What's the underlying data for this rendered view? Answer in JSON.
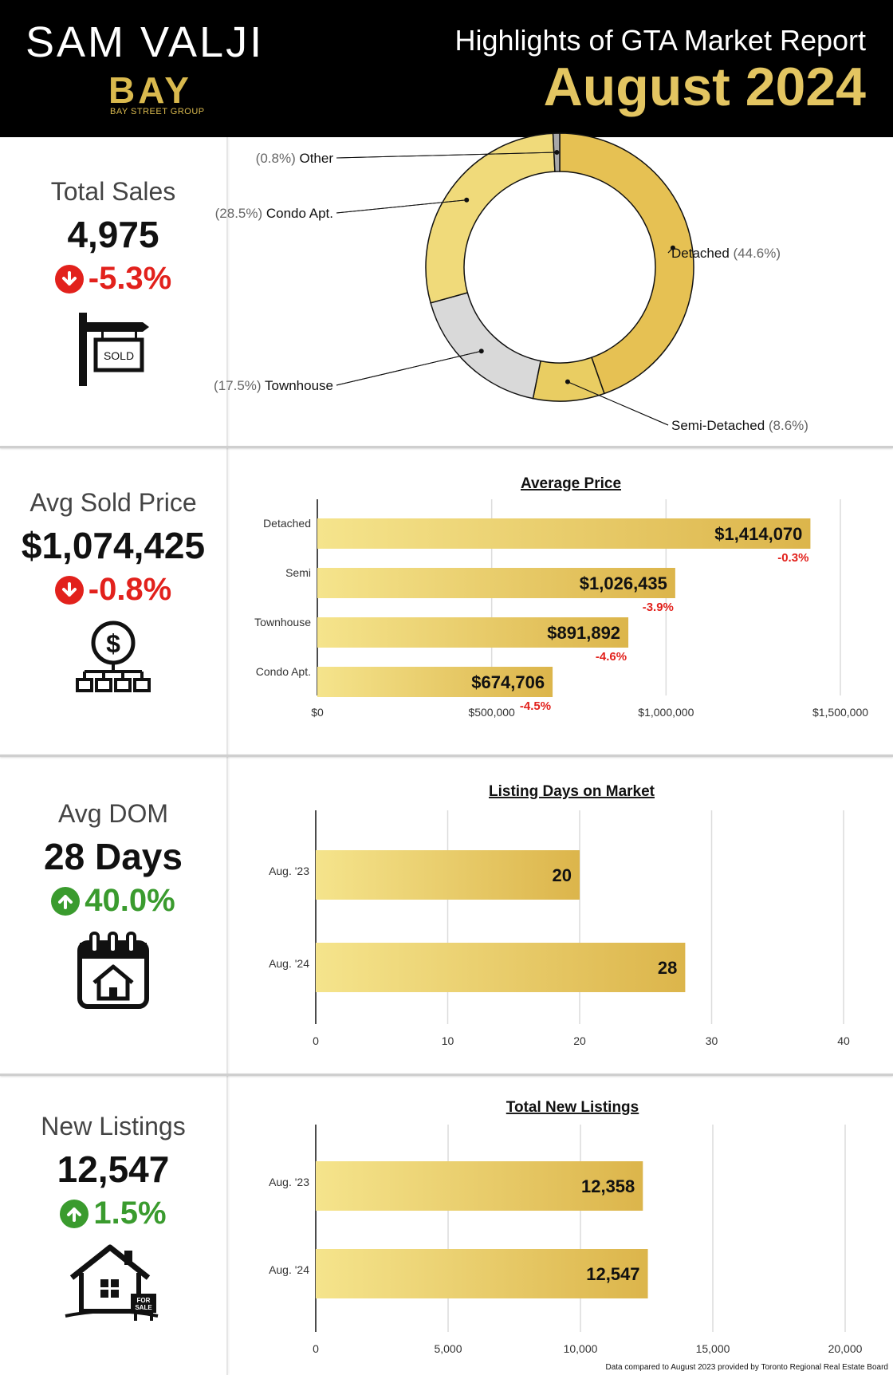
{
  "header": {
    "brand_name": "SAM VALJI",
    "brand_logo": "BAY",
    "brand_sub": "BAY STREET GROUP",
    "report_title": "Highlights of GTA Market Report",
    "report_month": "August 2024"
  },
  "stats": {
    "total_sales": {
      "label": "Total Sales",
      "value": "4,975",
      "change": "-5.3%",
      "direction": "down",
      "icon": "sold-sign-icon",
      "icon_text": "SOLD"
    },
    "avg_price": {
      "label": "Avg Sold Price",
      "value": "$1,074,425",
      "change": "-0.8%",
      "direction": "down",
      "icon": "dollar-network-icon"
    },
    "avg_dom": {
      "label": "Avg DOM",
      "value": "28 Days",
      "change": "40.0%",
      "direction": "up",
      "icon": "calendar-house-icon"
    },
    "new_listings": {
      "label": "New Listings",
      "value": "12,547",
      "change": "1.5%",
      "direction": "up",
      "icon": "house-for-sale-icon",
      "icon_text_1": "FOR",
      "icon_text_2": "SALE"
    }
  },
  "footnote": "Data compared to August 2023 provided by Toronto Regional Real Estate Board",
  "chart_data": [
    {
      "type": "pie",
      "title": "",
      "slices": [
        {
          "name": "Detached",
          "pct_label": "(44.6%)",
          "value": 44.6,
          "color": "#e6c153"
        },
        {
          "name": "Semi-Detached",
          "pct_label": "(8.6%)",
          "value": 8.6,
          "color": "#e9cd62"
        },
        {
          "name": "Townhouse",
          "pct_label": "(17.5%)",
          "value": 17.5,
          "color": "#d9d9d9"
        },
        {
          "name": "Condo Apt.",
          "pct_label": "(28.5%)",
          "value": 28.5,
          "color": "#f0da7a"
        },
        {
          "name": "Other",
          "pct_label": "(0.8%)",
          "value": 0.8,
          "color": "#a8a8a8"
        }
      ]
    },
    {
      "type": "bar",
      "orientation": "horizontal",
      "title": "Average Price",
      "categories": [
        "Detached",
        "Semi",
        "Townhouse",
        "Condo Apt."
      ],
      "values": [
        1414070,
        1026435,
        891892,
        674706
      ],
      "value_labels": [
        "$1,414,070",
        "$1,026,435",
        "$891,892",
        "$674,706"
      ],
      "change_labels": [
        "-0.3%",
        "-3.9%",
        "-4.6%",
        "-4.5%"
      ],
      "xlim": [
        0,
        1500000
      ],
      "ticks": [
        0,
        500000,
        1000000,
        1500000
      ],
      "tick_labels": [
        "$0",
        "$500,000",
        "$1,000,000",
        "$1,500,000"
      ],
      "grid": true
    },
    {
      "type": "bar",
      "orientation": "horizontal",
      "title": "Listing Days on Market",
      "categories": [
        "Aug. '23",
        "Aug. '24"
      ],
      "values": [
        20,
        28
      ],
      "value_labels": [
        "20",
        "28"
      ],
      "xlim": [
        0,
        40
      ],
      "ticks": [
        0,
        10,
        20,
        30,
        40
      ],
      "tick_labels": [
        "0",
        "10",
        "20",
        "30",
        "40"
      ],
      "grid": true
    },
    {
      "type": "bar",
      "orientation": "horizontal",
      "title": "Total New Listings",
      "categories": [
        "Aug. '23",
        "Aug. '24"
      ],
      "values": [
        12358,
        12547
      ],
      "value_labels": [
        "12,358",
        "12,547"
      ],
      "xlim": [
        0,
        20000
      ],
      "ticks": [
        0,
        5000,
        10000,
        15000,
        20000
      ],
      "tick_labels": [
        "0",
        "5,000",
        "10,000",
        "15,000",
        "20,000"
      ],
      "grid": true
    }
  ]
}
